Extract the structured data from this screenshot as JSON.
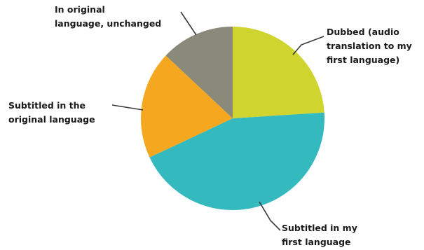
{
  "chart_data": {
    "type": "pie",
    "categories": [
      "Dubbed (audio translation to my first language)",
      "Subtitled in my first language",
      "Subtitled in the original language",
      "In original language, unchanged"
    ],
    "values": [
      24,
      44,
      19,
      13
    ],
    "colors": [
      "#cfd42e",
      "#34b9be",
      "#f5a81f",
      "#8a8a7a"
    ],
    "start_angle_deg": 0,
    "direction": "clockwise",
    "legend": "none",
    "labels": {
      "dubbed": [
        "Dubbed (audio",
        "translation to my",
        "first language)"
      ],
      "subtitled_first": [
        "Subtitled in my",
        "first language"
      ],
      "subtitled_original": [
        "Subtitled in the",
        "original language"
      ],
      "original": [
        "In original",
        "language, unchanged"
      ]
    }
  }
}
